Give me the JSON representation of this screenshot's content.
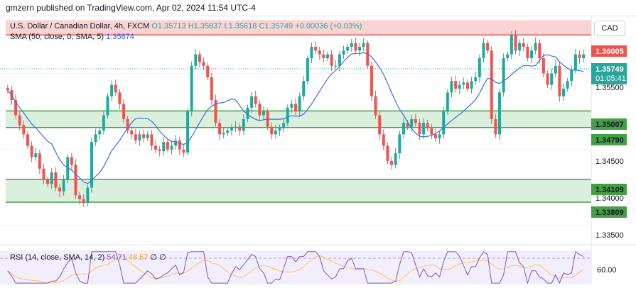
{
  "attribution": "gmzern published on TradingView.com, Apr 02, 2024 11:54 UTC-4",
  "legend": {
    "symbol": "U.S. Dollar / Canadian Dollar, 4h, FXCM",
    "open": "O1.35713",
    "high": "H1.35837",
    "low": "L1.35618",
    "close": "C1.35749",
    "change": "+0.00036 (+0.03%)",
    "sma_label": "SMA (50, close, 0, SMA, 5)",
    "sma_value": "1.35674",
    "rsi_label": "RSI (14, close, SMA, 14, 2)",
    "rsi_value": "54.71",
    "rsi_ma_value": "48.57",
    "rsi_extra": "∅ ∅"
  },
  "currency_button": "CAD",
  "price_axis": {
    "ticks": [
      "1.35500",
      "1.34500",
      "1.34000",
      "1.33500"
    ],
    "level_badges": [
      "1.36005",
      "1.35007",
      "1.34790",
      "1.34109",
      "1.33809"
    ],
    "current_price": "1.35749",
    "countdown": "01:05:41"
  },
  "rsi_axis": {
    "ticks": [
      "60.00"
    ]
  },
  "colors": {
    "up": "#26a69a",
    "down": "#ef5350",
    "sma": "#3d6fd8",
    "resistance_zone": "#f7c6c6",
    "support_zone": "#cdebd1",
    "rsi": "#7e57c2",
    "rsi_ma": "#f9c74f",
    "price_badge": "#26a69a",
    "resistance_badge": "#ef5350",
    "support_badge": "#43a047"
  },
  "chart_data": {
    "type": "candlestick",
    "ylim": [
      1.3325,
      1.3625
    ],
    "zones": [
      {
        "kind": "resistance",
        "from": 1.36,
        "to": 1.362
      },
      {
        "kind": "support",
        "from": 1.3479,
        "to": 1.3501
      },
      {
        "kind": "support",
        "from": 1.3381,
        "to": 1.3411
      }
    ],
    "lines": [
      1.36005,
      1.35007,
      1.3479,
      1.34109,
      1.33809
    ],
    "closes": [
      1.3528,
      1.3515,
      1.3495,
      1.3482,
      1.347,
      1.3455,
      1.344,
      1.3445,
      1.3425,
      1.341,
      1.3405,
      1.342,
      1.34,
      1.3395,
      1.341,
      1.344,
      1.343,
      1.339,
      1.3385,
      1.338,
      1.34,
      1.346,
      1.347,
      1.3475,
      1.3495,
      1.352,
      1.3535,
      1.3525,
      1.351,
      1.349,
      1.3475,
      1.347,
      1.3462,
      1.347,
      1.3465,
      1.347,
      1.3455,
      1.345,
      1.3448,
      1.346,
      1.345,
      1.3455,
      1.3462,
      1.345,
      1.3446,
      1.35,
      1.356,
      1.3575,
      1.3565,
      1.356,
      1.3545,
      1.3515,
      1.3485,
      1.347,
      1.3472,
      1.3475,
      1.3478,
      1.348,
      1.3475,
      1.349,
      1.3505,
      1.352,
      1.351,
      1.3495,
      1.35,
      1.348,
      1.347,
      1.3475,
      1.3478,
      1.3485,
      1.3505,
      1.351,
      1.35,
      1.352,
      1.354,
      1.357,
      1.3585,
      1.358,
      1.3575,
      1.357,
      1.3575,
      1.356,
      1.356,
      1.3575,
      1.358,
      1.3585,
      1.359,
      1.358,
      1.3585,
      1.359,
      1.356,
      1.352,
      1.3495,
      1.347,
      1.3455,
      1.3435,
      1.343,
      1.3445,
      1.347,
      1.3485,
      1.348,
      1.349,
      1.3485,
      1.347,
      1.3485,
      1.3478,
      1.347,
      1.3465,
      1.347,
      1.35,
      1.3525,
      1.354,
      1.353,
      1.3535,
      1.3538,
      1.353,
      1.354,
      1.3545,
      1.357,
      1.359,
      1.358,
      1.349,
      1.347,
      1.3525,
      1.357,
      1.3575,
      1.36,
      1.358,
      1.359,
      1.3585,
      1.357,
      1.358,
      1.359,
      1.357,
      1.355,
      1.3535,
      1.355,
      1.356,
      1.352,
      1.353,
      1.354,
      1.3555,
      1.3575,
      1.357,
      1.3575
    ]
  }
}
